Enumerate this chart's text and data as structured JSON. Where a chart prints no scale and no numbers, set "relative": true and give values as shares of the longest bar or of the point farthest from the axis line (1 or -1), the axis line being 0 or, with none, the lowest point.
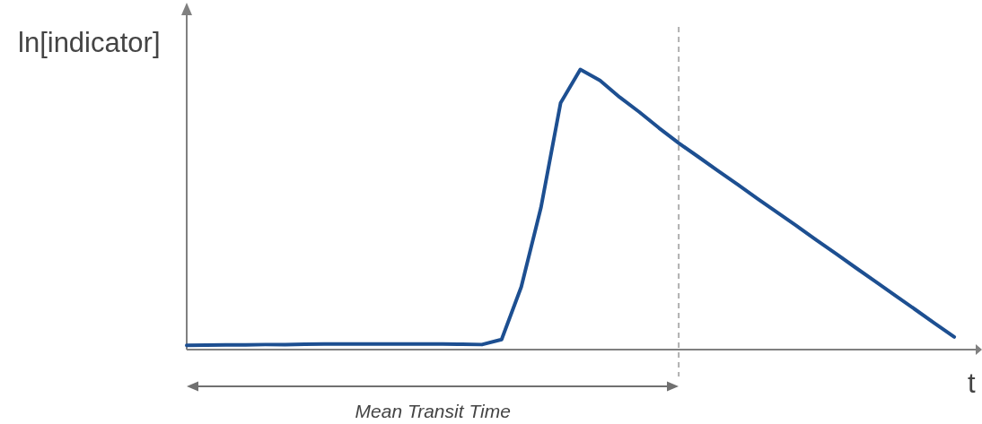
{
  "chart_data": {
    "type": "line",
    "relative": true,
    "ylabel": "ln[indicator]",
    "xlabel": "t",
    "legend": false,
    "marker": "none",
    "line_style": "solid",
    "categories": [
      null,
      null,
      null,
      null,
      null,
      null,
      null,
      null,
      null,
      null,
      null,
      null,
      null,
      null,
      null,
      null,
      null,
      null,
      null,
      null,
      null,
      null,
      null,
      null,
      null,
      null,
      null,
      null,
      null,
      null,
      null,
      null,
      null,
      null,
      null,
      null,
      null,
      null,
      null,
      null,
      null
    ],
    "series": [
      {
        "color": "#1d4f91",
        "values": [
          0.015,
          0.016,
          0.017,
          0.017,
          0.018,
          0.018,
          0.019,
          0.02,
          0.02,
          0.02,
          0.02,
          0.02,
          0.02,
          0.02,
          0.019,
          0.018,
          0.036,
          0.224,
          0.507,
          0.881,
          1.0,
          0.961,
          0.901,
          0.848,
          0.791,
          0.737,
          0.688,
          0.638,
          0.589,
          0.539,
          0.49,
          0.441,
          0.391,
          0.342,
          0.292,
          0.243,
          0.193,
          0.144,
          0.094,
          0.045,
          null
        ]
      }
    ],
    "annotations": [
      "Mean Transit Time"
    ]
  }
}
